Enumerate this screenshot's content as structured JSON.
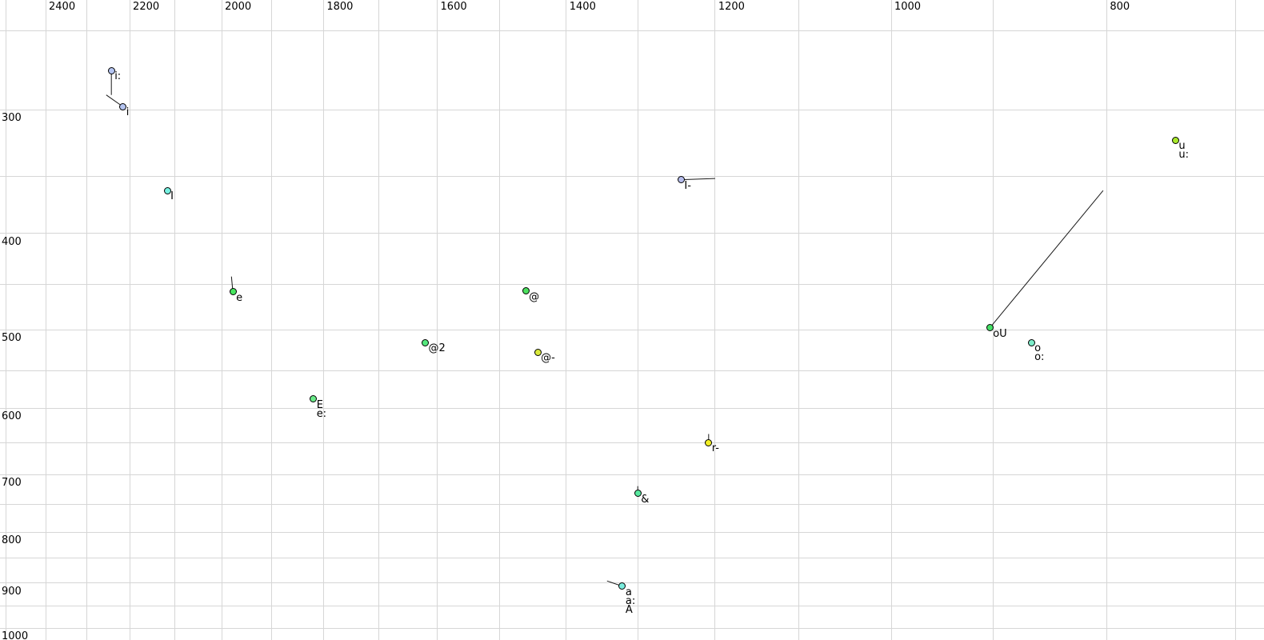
{
  "chart_data": {
    "type": "scatter",
    "title": "",
    "x_axis": {
      "position": "top",
      "scale": "log",
      "reversed": true,
      "unit": "Hz",
      "tick_labels": [
        2400,
        2200,
        2000,
        1800,
        1600,
        1400,
        1200,
        1000,
        800
      ],
      "gridline_start": 2500,
      "gridline_end": 700,
      "gridline_step": 100,
      "range": [
        2500,
        690
      ]
    },
    "y_axis": {
      "position": "left",
      "scale": "log",
      "direction": "down",
      "unit": "Hz",
      "tick_labels": [
        300,
        400,
        500,
        600,
        700,
        800,
        900,
        1000
      ],
      "gridline_start": 250,
      "gridline_end": 1000,
      "gridline_step": 50,
      "range": [
        235,
        1010
      ]
    },
    "grid": true,
    "legend": "none",
    "points": [
      {
        "labels": [
          "i:"
        ],
        "f2": 2242,
        "f1": 274,
        "color": "#b5c5f2",
        "tail": {
          "f2": 2242,
          "f1": 290
        }
      },
      {
        "labels": [
          "i"
        ],
        "f2": 2215,
        "f1": 298,
        "color": "#b5c5f2",
        "tail": {
          "f2": 2254,
          "f1": 290
        }
      },
      {
        "labels": [
          "I"
        ],
        "f2": 2116,
        "f1": 362,
        "color": "#76f1e1"
      },
      {
        "labels": [
          "e"
        ],
        "f2": 1977,
        "f1": 458,
        "color": "#47e65f",
        "tail": {
          "f2": 1980,
          "f1": 442
        }
      },
      {
        "labels": [
          "E",
          "e:"
        ],
        "f2": 1819,
        "f1": 587,
        "color": "#69ea88"
      },
      {
        "labels": [
          "@2"
        ],
        "f2": 1620,
        "f1": 515,
        "color": "#55e87d"
      },
      {
        "labels": [
          "@"
        ],
        "f2": 1460,
        "f1": 457,
        "color": "#4ce05e"
      },
      {
        "labels": [
          "@-"
        ],
        "f2": 1442,
        "f1": 527,
        "color": "#d9e93b"
      },
      {
        "labels": [
          "I-"
        ],
        "f2": 1243,
        "f1": 353,
        "color": "#b6bdec",
        "tail": {
          "f2": 1200,
          "f1": 352
        }
      },
      {
        "labels": [
          "r-"
        ],
        "f2": 1208,
        "f1": 650,
        "color": "#f2ef25",
        "tail": {
          "f2": 1208,
          "f1": 637
        }
      },
      {
        "labels": [
          "&"
        ],
        "f2": 1300,
        "f1": 731,
        "color": "#58e99f",
        "tail": {
          "f2": 1300,
          "f1": 719
        }
      },
      {
        "labels": [
          "a",
          "a:",
          "A"
        ],
        "f2": 1321,
        "f1": 907,
        "color": "#7bedde",
        "tail": {
          "f2": 1342,
          "f1": 896
        }
      },
      {
        "labels": [
          "oU"
        ],
        "f2": 903,
        "f1": 498,
        "color": "#46e067",
        "tail": {
          "f2": 803,
          "f1": 362
        }
      },
      {
        "labels": [
          "o",
          "o:"
        ],
        "f2": 865,
        "f1": 515,
        "color": "#7cecc9"
      },
      {
        "labels": [
          "u",
          "u:"
        ],
        "f2": 745,
        "f1": 322,
        "color": "#a8e82b"
      }
    ],
    "colors": {
      "background": "#ffffff",
      "gridline": "#d6d6d6",
      "point_outline": "#000000",
      "trajectory_line": "#1a1a1a",
      "label_text": "#000000"
    }
  }
}
